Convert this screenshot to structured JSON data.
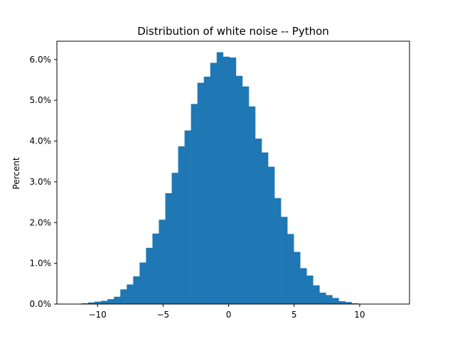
{
  "chart_data": {
    "type": "bar",
    "title": "Distribution of white noise -- Python",
    "xlabel": "",
    "ylabel": "Percent",
    "xlim": [
      -13.1,
      13.8
    ],
    "ylim": [
      0,
      6.45
    ],
    "x_ticks": [
      -10,
      -5,
      0,
      5,
      10
    ],
    "x_tick_labels": [
      "−10",
      "−5",
      "0",
      "5",
      "10"
    ],
    "y_ticks": [
      0,
      1,
      2,
      3,
      4,
      5,
      6
    ],
    "y_tick_labels": [
      "0.0%",
      "1.0%",
      "2.0%",
      "3.0%",
      "4.0%",
      "5.0%",
      "6.0%"
    ],
    "grid": false,
    "bar_color": "#1f77b4",
    "bin_width": 0.49,
    "bin_start": -11.2,
    "values": [
      0.02,
      0.04,
      0.06,
      0.08,
      0.12,
      0.18,
      0.36,
      0.48,
      0.68,
      1.02,
      1.38,
      1.73,
      2.07,
      2.72,
      3.22,
      3.87,
      4.26,
      4.91,
      5.43,
      5.58,
      5.92,
      6.18,
      6.07,
      6.05,
      5.6,
      5.34,
      4.85,
      4.06,
      3.72,
      3.37,
      2.6,
      2.14,
      1.72,
      1.28,
      0.88,
      0.7,
      0.46,
      0.28,
      0.22,
      0.15,
      0.07,
      0.05,
      0.02
    ]
  }
}
